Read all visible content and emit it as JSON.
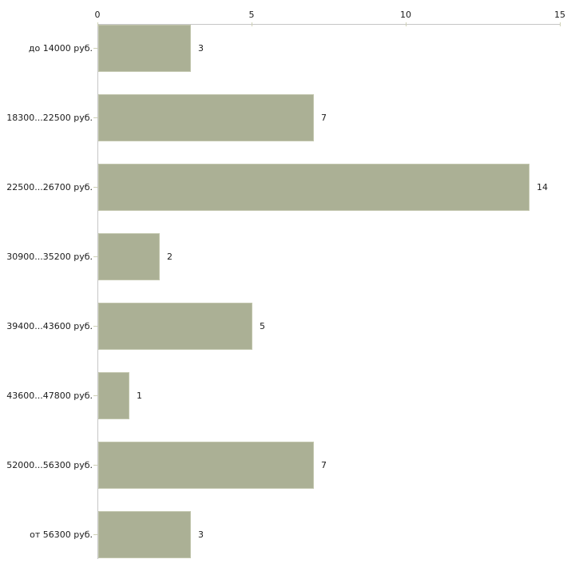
{
  "chart_data": {
    "type": "bar",
    "orientation": "horizontal",
    "title": "",
    "categories": [
      "до 14000 руб.",
      "18300...22500 руб.",
      "22500...26700 руб.",
      "30900...35200 руб.",
      "39400...43600 руб.",
      "43600...47800 руб.",
      "52000...56300 руб.",
      "от 56300 руб."
    ],
    "values": [
      3,
      7,
      14,
      2,
      5,
      1,
      7,
      3
    ],
    "value_labels": [
      "3",
      "7",
      "14",
      "2",
      "5",
      "1",
      "7",
      "3"
    ],
    "xlim": [
      0,
      15
    ],
    "x_ticks": [
      0,
      5,
      10,
      15
    ],
    "x_tick_labels": [
      "0",
      "5",
      "10",
      "15"
    ],
    "xlabel": "",
    "ylabel": "",
    "grid": false,
    "legend": false,
    "axis_position": "top",
    "colors": {
      "background": "#ffffff",
      "bar_fill": "#abb095",
      "bar_edge": "#c2c6ad",
      "axis_line": "#c6c6c6",
      "tick_mark": "#cfd1b6",
      "text": "#1b1b1b"
    }
  }
}
